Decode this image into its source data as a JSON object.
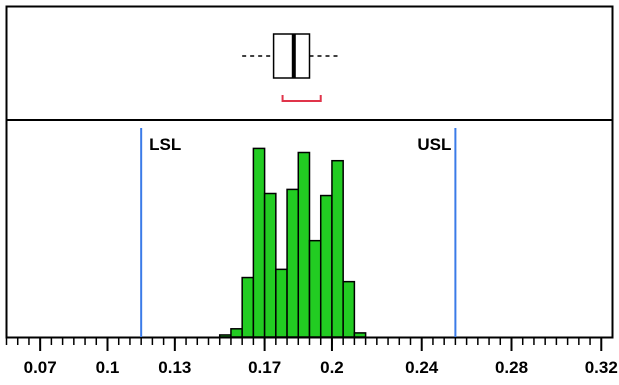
{
  "chart_data": {
    "type": "bar",
    "subtype": "histogram-with-boxplot",
    "x_range": [
      0.055,
      0.325
    ],
    "x_ticks": [
      0.07,
      0.1,
      0.13,
      0.17,
      0.2,
      0.24,
      0.28,
      0.32
    ],
    "x_tick_labels": [
      "0.07",
      "0.1",
      "0.13",
      "0.17",
      "0.2",
      "0.24",
      "0.28",
      "0.32"
    ],
    "minor_tick_step": 0.005,
    "bin_width": 0.005,
    "bins": [
      {
        "start": 0.15,
        "count": 1
      },
      {
        "start": 0.155,
        "count": 4
      },
      {
        "start": 0.16,
        "count": 29
      },
      {
        "start": 0.165,
        "count": 92
      },
      {
        "start": 0.17,
        "count": 70
      },
      {
        "start": 0.175,
        "count": 33
      },
      {
        "start": 0.18,
        "count": 72
      },
      {
        "start": 0.185,
        "count": 90
      },
      {
        "start": 0.19,
        "count": 47
      },
      {
        "start": 0.195,
        "count": 69
      },
      {
        "start": 0.2,
        "count": 86
      },
      {
        "start": 0.205,
        "count": 27
      },
      {
        "start": 0.21,
        "count": 2
      }
    ],
    "y_max": 100,
    "bar_color": "#22cc22",
    "spec_limits": [
      {
        "label": "LSL",
        "value": 0.115
      },
      {
        "label": "USL",
        "value": 0.255
      }
    ],
    "spec_line_color": "#3b7be8",
    "boxplot": {
      "whisker_low": 0.16,
      "q1": 0.174,
      "median": 0.183,
      "q3": 0.19,
      "whisker_high": 0.204,
      "shortest_half": [
        0.178,
        0.195
      ],
      "shortest_half_color": "#e0344a"
    },
    "grid": false,
    "legend": "none"
  }
}
